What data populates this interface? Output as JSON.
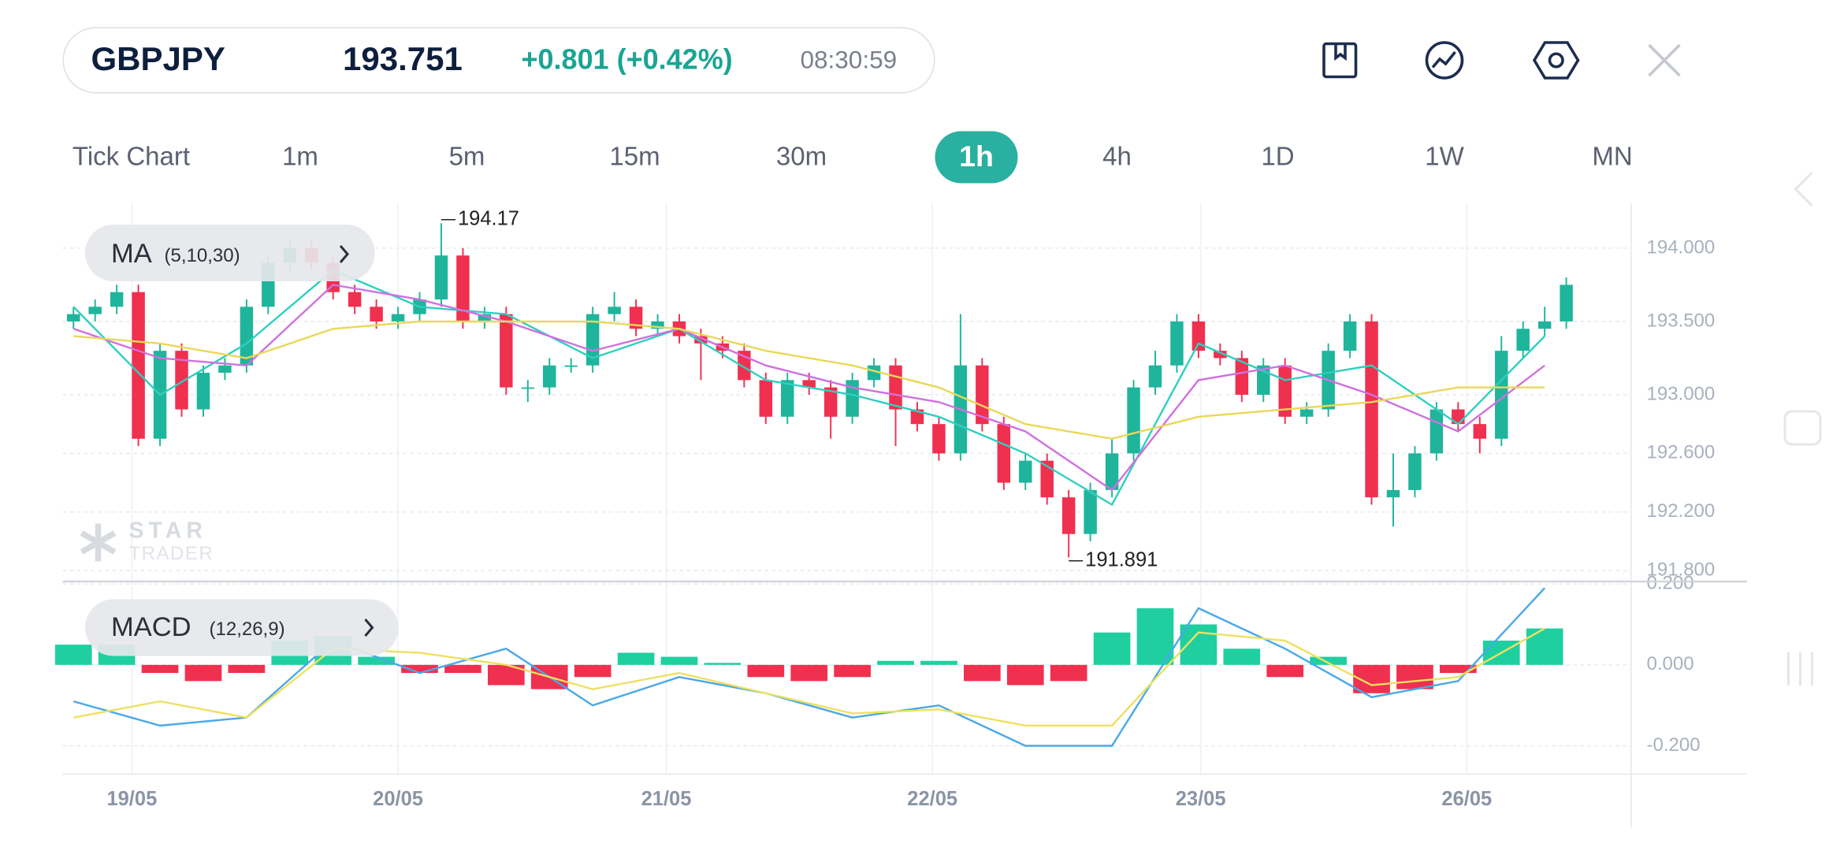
{
  "header": {
    "symbol": "GBPJPY",
    "price": 193.751,
    "change": "+0.801 (+0.42%)",
    "time": "08:30:59"
  },
  "timeframes": {
    "items": [
      "Tick Chart",
      "1m",
      "5m",
      "15m",
      "30m",
      "1h",
      "4h",
      "1D",
      "1W",
      "MN"
    ],
    "active": 5
  },
  "watermark": [
    "STAR",
    "TRADER"
  ],
  "chart_data": [
    {
      "type": "candlestick",
      "indicator": {
        "name": "MA",
        "params": "(5,10,30)"
      },
      "colors": {
        "up": "#1fb59c",
        "down": "#f0304f"
      },
      "xlim": [
        -0.5,
        72
      ],
      "ylim": [
        191.742,
        194.306
      ],
      "yticks": [
        {
          "value": 194.0,
          "label": "194.000"
        },
        {
          "value": 193.5,
          "label": "193.500"
        },
        {
          "value": 193.0,
          "label": "193.000"
        },
        {
          "value": 192.6,
          "label": "192.600"
        },
        {
          "value": 192.2,
          "label": "192.200"
        },
        {
          "value": 191.8,
          "label": "191.800"
        }
      ],
      "grid": true,
      "x": [
        0,
        1,
        2,
        3,
        4,
        5,
        6,
        7,
        8,
        9,
        10,
        11,
        12,
        13,
        14,
        15,
        16,
        17,
        18,
        19,
        20,
        21,
        22,
        23,
        24,
        25,
        26,
        27,
        28,
        29,
        30,
        31,
        32,
        33,
        34,
        35,
        36,
        37,
        38,
        39,
        40,
        41,
        42,
        43,
        44,
        45,
        46,
        47,
        48,
        49,
        50,
        51,
        52,
        53,
        54,
        55,
        56,
        57,
        58,
        59,
        60,
        61,
        62,
        63,
        64,
        65,
        66,
        67,
        68,
        69
      ],
      "open": [
        193.5,
        193.55,
        193.6,
        193.7,
        192.7,
        193.3,
        192.9,
        193.15,
        193.2,
        193.6,
        193.9,
        194.0,
        193.9,
        193.7,
        193.6,
        193.5,
        193.55,
        193.65,
        193.95,
        193.5,
        193.55,
        193.05,
        193.05,
        193.2,
        193.2,
        193.55,
        193.6,
        193.45,
        193.5,
        193.4,
        193.35,
        193.3,
        193.1,
        192.85,
        193.1,
        193.05,
        192.85,
        193.1,
        193.2,
        192.9,
        192.8,
        192.6,
        193.2,
        192.8,
        192.4,
        192.55,
        192.3,
        192.05,
        192.35,
        192.6,
        193.05,
        193.2,
        193.5,
        193.3,
        193.25,
        193.0,
        193.2,
        192.85,
        192.9,
        193.3,
        193.5,
        192.3,
        192.35,
        192.6,
        192.9,
        192.8,
        192.7,
        193.3,
        193.45,
        193.5
      ],
      "high": [
        193.6,
        193.65,
        193.75,
        193.75,
        193.35,
        193.35,
        193.2,
        193.25,
        193.65,
        193.95,
        194.05,
        194.05,
        193.95,
        193.75,
        193.65,
        193.6,
        193.7,
        194.17,
        194.0,
        193.6,
        193.6,
        193.1,
        193.25,
        193.25,
        193.6,
        193.7,
        193.65,
        193.55,
        193.55,
        193.45,
        193.4,
        193.35,
        193.15,
        193.15,
        193.15,
        193.1,
        193.15,
        193.25,
        193.25,
        192.95,
        192.85,
        193.55,
        193.25,
        192.85,
        192.6,
        192.6,
        192.35,
        192.4,
        192.7,
        193.1,
        193.3,
        193.55,
        193.55,
        193.35,
        193.3,
        193.25,
        193.25,
        192.95,
        193.35,
        193.55,
        193.55,
        192.6,
        192.65,
        192.95,
        192.95,
        192.85,
        193.4,
        193.5,
        193.6,
        193.8
      ],
      "low": [
        193.45,
        193.5,
        193.55,
        192.65,
        192.65,
        192.85,
        192.85,
        193.1,
        193.15,
        193.55,
        193.85,
        193.85,
        193.65,
        193.55,
        193.45,
        193.45,
        193.5,
        193.6,
        193.45,
        193.45,
        193.0,
        192.95,
        193.0,
        193.15,
        193.15,
        193.5,
        193.4,
        193.4,
        193.35,
        193.1,
        193.25,
        193.05,
        192.8,
        192.8,
        193.0,
        192.7,
        192.8,
        193.05,
        192.65,
        192.75,
        192.55,
        192.55,
        192.75,
        192.35,
        192.35,
        192.25,
        191.891,
        192.0,
        192.3,
        192.55,
        193.0,
        193.15,
        193.25,
        193.2,
        192.95,
        192.95,
        192.8,
        192.8,
        192.85,
        193.25,
        192.25,
        192.1,
        192.3,
        192.55,
        192.75,
        192.6,
        192.65,
        193.25,
        193.4,
        193.45
      ],
      "close": [
        193.55,
        193.6,
        193.7,
        192.7,
        193.3,
        192.9,
        193.15,
        193.2,
        193.6,
        193.9,
        194.0,
        193.9,
        193.7,
        193.6,
        193.5,
        193.55,
        193.65,
        193.95,
        193.5,
        193.55,
        193.05,
        193.05,
        193.2,
        193.2,
        193.55,
        193.6,
        193.45,
        193.5,
        193.4,
        193.35,
        193.3,
        193.1,
        192.85,
        193.1,
        193.05,
        192.85,
        193.1,
        193.2,
        192.9,
        192.8,
        192.6,
        193.2,
        192.8,
        192.4,
        192.55,
        192.3,
        192.05,
        192.35,
        192.6,
        193.05,
        193.2,
        193.5,
        193.3,
        193.25,
        193.0,
        193.2,
        192.85,
        192.9,
        193.3,
        193.5,
        192.3,
        192.35,
        192.6,
        192.9,
        192.8,
        192.7,
        193.3,
        193.45,
        193.5,
        193.75
      ],
      "high_mark": 17,
      "low_mark": 46,
      "series": [
        {
          "color": "#2ecfc0",
          "x": [
            0,
            4,
            8,
            12,
            16,
            20,
            24,
            28,
            32,
            36,
            40,
            44,
            48,
            52,
            56,
            60,
            64,
            68
          ],
          "values": [
            193.6,
            193.0,
            193.35,
            193.85,
            193.6,
            193.55,
            193.25,
            193.45,
            193.1,
            193.0,
            192.85,
            192.6,
            192.25,
            193.35,
            193.1,
            193.2,
            192.8,
            193.4
          ]
        },
        {
          "color": "#d070e0",
          "x": [
            0,
            4,
            8,
            12,
            16,
            20,
            24,
            28,
            32,
            36,
            40,
            44,
            48,
            52,
            56,
            60,
            64,
            68
          ],
          "values": [
            193.45,
            193.25,
            193.2,
            193.75,
            193.65,
            193.5,
            193.3,
            193.45,
            193.2,
            193.05,
            192.95,
            192.75,
            192.35,
            193.1,
            193.2,
            193.0,
            192.75,
            193.2
          ]
        },
        {
          "color": "#e8d85a",
          "x": [
            0,
            4,
            8,
            12,
            16,
            20,
            24,
            28,
            32,
            36,
            40,
            44,
            48,
            52,
            56,
            60,
            64,
            68
          ],
          "values": [
            193.4,
            193.35,
            193.25,
            193.45,
            193.5,
            193.5,
            193.5,
            193.45,
            193.3,
            193.2,
            193.05,
            192.8,
            192.7,
            192.85,
            192.9,
            192.95,
            193.05,
            193.05
          ]
        }
      ]
    },
    {
      "type": "macd",
      "indicator": {
        "name": "MACD",
        "params": "(12,26,9)"
      },
      "xlim": [
        -0.5,
        72
      ],
      "ylim": [
        -0.27,
        0.206
      ],
      "yticks": [
        {
          "value": 0.2,
          "label": "0.200"
        },
        {
          "value": 0,
          "label": "0.000"
        },
        {
          "value": -0.2,
          "label": "-0.200"
        }
      ],
      "xticks": [
        {
          "value": 2.7,
          "label": "19/05"
        },
        {
          "value": 15,
          "label": "20/05"
        },
        {
          "value": 27.4,
          "label": "21/05"
        },
        {
          "value": 39.7,
          "label": "22/05"
        },
        {
          "value": 52.1,
          "label": "23/05"
        },
        {
          "value": 64.4,
          "label": "26/05"
        }
      ],
      "grid": true,
      "histogram": {
        "up_color": "#1fcfa0",
        "down_color": "#f0304f",
        "x": [
          0,
          2,
          4,
          6,
          8,
          10,
          12,
          14,
          16,
          18,
          20,
          22,
          24,
          26,
          28,
          30,
          32,
          34,
          36,
          38,
          40,
          42,
          44,
          46,
          48,
          50,
          52,
          54,
          56,
          58,
          60,
          62,
          64,
          66,
          68
        ],
        "values": [
          0.05,
          0.05,
          -0.02,
          -0.04,
          -0.02,
          0.06,
          0.07,
          0.02,
          -0.02,
          -0.02,
          -0.05,
          -0.06,
          -0.03,
          0.03,
          0.02,
          0.005,
          -0.03,
          -0.04,
          -0.03,
          0.01,
          0.01,
          -0.04,
          -0.05,
          -0.04,
          0.08,
          0.14,
          0.1,
          0.04,
          -0.03,
          0.02,
          -0.07,
          -0.06,
          -0.02,
          0.06,
          0.09
        ]
      },
      "series": [
        {
          "color": "#4aa8e8",
          "x": [
            0,
            4,
            8,
            12,
            16,
            20,
            24,
            28,
            32,
            36,
            40,
            44,
            48,
            52,
            56,
            60,
            64,
            68
          ],
          "values": [
            -0.09,
            -0.15,
            -0.13,
            0.06,
            -0.02,
            0.04,
            -0.1,
            -0.03,
            -0.07,
            -0.13,
            -0.1,
            -0.2,
            -0.2,
            0.14,
            0.04,
            -0.08,
            -0.04,
            0.19
          ]
        },
        {
          "color": "#eee060",
          "x": [
            0,
            4,
            8,
            12,
            16,
            20,
            24,
            28,
            32,
            36,
            40,
            44,
            48,
            52,
            56,
            60,
            64,
            68
          ],
          "values": [
            -0.13,
            -0.09,
            -0.13,
            0.04,
            0.03,
            0.0,
            -0.06,
            -0.02,
            -0.07,
            -0.12,
            -0.11,
            -0.15,
            -0.15,
            0.08,
            0.06,
            -0.05,
            -0.03,
            0.09
          ]
        }
      ]
    }
  ]
}
